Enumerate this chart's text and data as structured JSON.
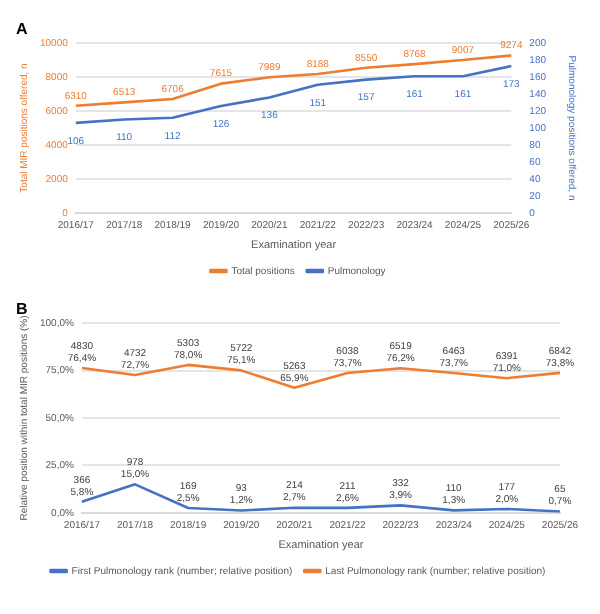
{
  "chart_data": [
    {
      "type": "line",
      "title": "A",
      "xlabel": "Examination year",
      "ylabel": "Total MIR positions offered, n",
      "y2label": "Pulmonology positions offered, n",
      "categories": [
        "2016/17",
        "2017/18",
        "2018/19",
        "2019/20",
        "2020/21",
        "2021/22",
        "2022/23",
        "2023/24",
        "2024/25",
        "2025/26"
      ],
      "series": [
        {
          "name": "Total positions",
          "color": "#ed7d31",
          "values": [
            6310,
            6513,
            6706,
            7615,
            7989,
            8188,
            8550,
            8768,
            9007,
            9274
          ]
        },
        {
          "name": "Pulmonology",
          "color": "#4472c4",
          "axis": "y2",
          "values": [
            106,
            110,
            112,
            126,
            136,
            151,
            157,
            161,
            161,
            173
          ]
        }
      ],
      "ylim": [
        0,
        10000
      ],
      "yticks": [
        0,
        2000,
        4000,
        6000,
        8000,
        10000
      ],
      "y2lim": [
        0,
        200
      ],
      "y2ticks": [
        0,
        20,
        40,
        60,
        80,
        100,
        120,
        140,
        160,
        180,
        200
      ],
      "grid": "y",
      "legend": "bottom",
      "data_labels": true,
      "marker": "none"
    },
    {
      "type": "line",
      "title": "B",
      "xlabel": "Examination year",
      "ylabel": "Relative position within total MIR positions (%)",
      "categories": [
        "2016/17",
        "2017/18",
        "2018/19",
        "2019/20",
        "2020/21",
        "2021/22",
        "2022/23",
        "2023/24",
        "2024/25",
        "2025/26"
      ],
      "series": [
        {
          "name": "First Pulmonology rank (number; relative position)",
          "color": "#4472c4",
          "values": [
            5.8,
            15.0,
            2.5,
            1.2,
            2.7,
            2.6,
            3.9,
            1.3,
            2.0,
            0.7
          ],
          "value_labels": [
            "366\n5,8%",
            "978\n15,0%",
            "169\n2,5%",
            "93\n1,2%",
            "214\n2,7%",
            "211\n2,6%",
            "332\n3,9%",
            "110\n1,3%",
            "177\n2,0%",
            "65\n0,7%"
          ]
        },
        {
          "name": "Last Pulmonology rank (number; relative position)",
          "color": "#ed7d31",
          "values": [
            76.4,
            72.7,
            78.0,
            75.1,
            65.9,
            73.7,
            76.2,
            73.7,
            71.0,
            73.8
          ],
          "value_labels": [
            "4830\n76,4%",
            "4732\n72,7%",
            "5303\n78,0%",
            "5722\n75,1%",
            "5263\n65,9%",
            "6038\n73,7%",
            "6519\n76,2%",
            "6463\n73,7%",
            "6391\n71,0%",
            "6842\n73,8%"
          ]
        }
      ],
      "ylim": [
        0,
        100
      ],
      "yticks": [
        {
          "value": 0,
          "label": "0,0%"
        },
        {
          "value": 25,
          "label": "25,0%"
        },
        {
          "value": 50,
          "label": "50,0%"
        },
        {
          "value": 75,
          "label": "75,0%"
        },
        {
          "value": 100,
          "label": "100,0%"
        }
      ],
      "grid": "y",
      "legend": "bottom",
      "marker": "none"
    }
  ]
}
